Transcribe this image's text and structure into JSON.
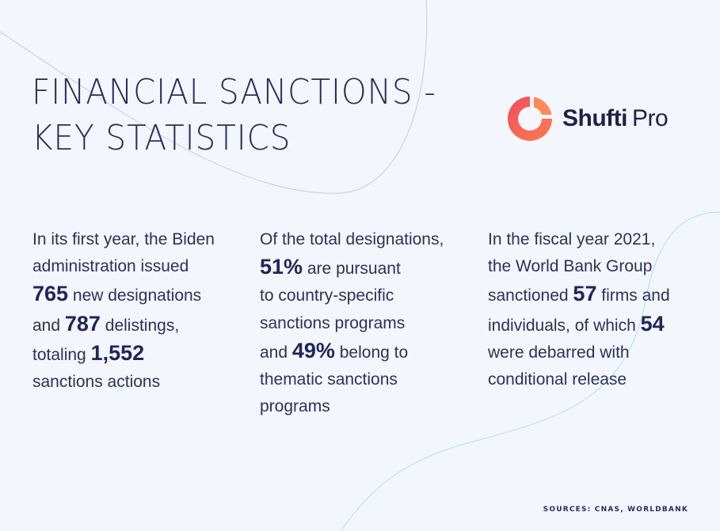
{
  "title": {
    "line1": "FINANCIAL SANCTIONS -",
    "line2": "KEY STATISTICS"
  },
  "logo": {
    "word1": "Shufti",
    "word2": "Pro",
    "icon": "shufti-pro-ring-icon",
    "color_start": "#f45a5a",
    "color_end": "#ff7a52"
  },
  "columns": [
    {
      "l1": "In its first year, the Biden",
      "l2": "administration issued",
      "n1": "765",
      "l3": " new designations",
      "l4a": "and ",
      "n2": "787",
      "l4b": " delistings,",
      "l5": "totaling ",
      "n3": "1,552",
      "l6": "sanctions actions"
    },
    {
      "l1": "Of the total designations,",
      "n1": "51%",
      "l2": " are pursuant",
      "l3": "to country-specific",
      "l4": "sanctions programs",
      "l5a": "and ",
      "n2": "49%",
      "l5b": " belong to",
      "l6": "thematic sanctions",
      "l7": "programs"
    },
    {
      "l1": "In the fiscal year 2021,",
      "l2": "the World Bank Group",
      "l3a": "sanctioned ",
      "n1": "57",
      "l3b": " firms and",
      "l4": "individuals, of which ",
      "n2": "54",
      "l5": "were debarred with",
      "l6": "conditional release"
    }
  ],
  "sources": "SOURCES: CNAS, WORLDBANK",
  "colors": {
    "background": "#f3f6fd",
    "text": "#2e3157",
    "accent": "#f45a5a"
  }
}
